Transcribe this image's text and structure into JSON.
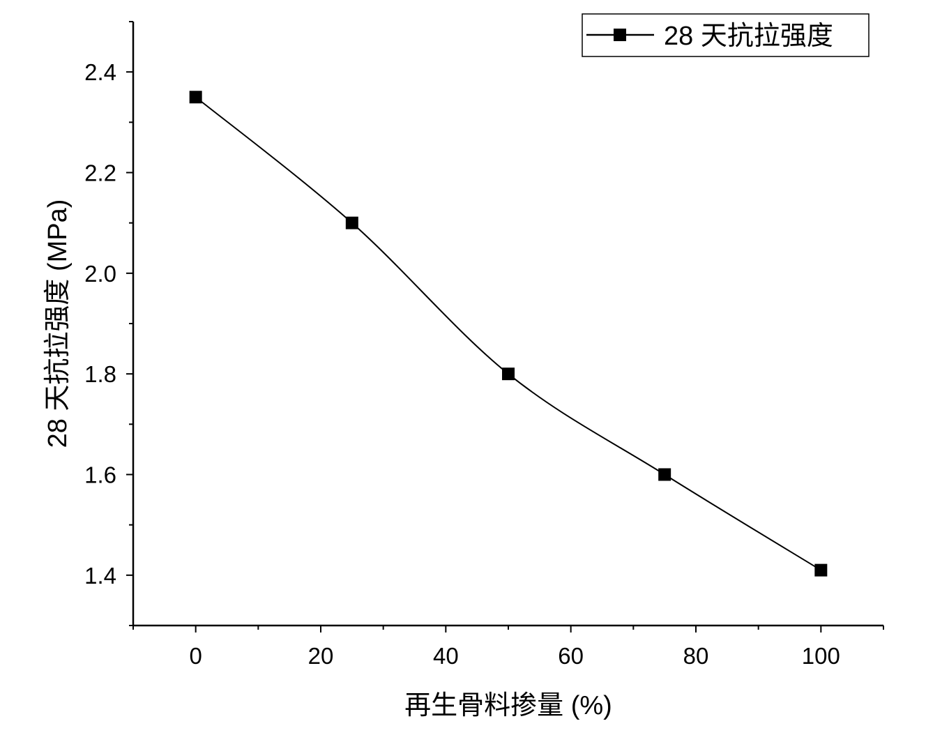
{
  "chart_data": {
    "type": "line",
    "title": "",
    "xlabel": "再生骨料掺量 (%)",
    "ylabel": "28 天抗拉强度 (MPa)",
    "x": [
      0,
      25,
      50,
      75,
      100
    ],
    "series": [
      {
        "name": "28 天抗拉强度",
        "values": [
          2.35,
          2.1,
          1.8,
          1.6,
          1.41
        ],
        "marker": "square",
        "color": "#000000",
        "smooth": true
      }
    ],
    "xlim": [
      -10,
      110
    ],
    "ylim": [
      1.3,
      2.5
    ],
    "xticks": [
      0,
      20,
      40,
      60,
      80,
      100
    ],
    "xtick_labels": [
      "0",
      "20",
      "40",
      "60",
      "80",
      "100"
    ],
    "yticks": [
      1.4,
      1.6,
      1.8,
      2.0,
      2.2,
      2.4
    ],
    "ytick_labels": [
      "1.4",
      "1.6",
      "1.8",
      "2.0",
      "2.2",
      "2.4"
    ],
    "grid": false,
    "legend": "top-right"
  }
}
